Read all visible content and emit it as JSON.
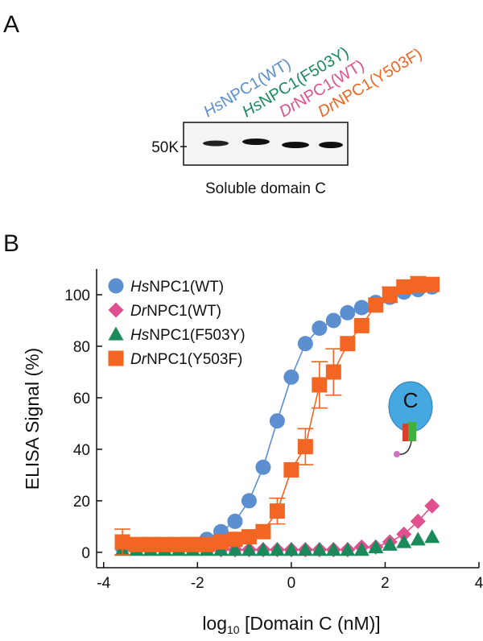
{
  "panel_labels": [
    "A",
    "B"
  ],
  "blot": {
    "lanes": [
      {
        "text": "HsNPC1(WT)",
        "color": "#5b8fd0"
      },
      {
        "text": "HsNPC1(F503Y)",
        "color": "#1a8a5a"
      },
      {
        "text": "DrNPC1(WT)",
        "color": "#e0508f"
      },
      {
        "text": "DrNPC1(Y503F)",
        "color": "#f26522"
      }
    ],
    "marker": "50K",
    "caption": "Soluble domain C"
  },
  "chart_data": {
    "type": "scatter",
    "y_label": "ELISA Signal (%)",
    "x_label": {
      "main": "log",
      "sub": "10",
      "rest": " [Domain C (nM)]"
    },
    "xlim": [
      -4.15,
      4
    ],
    "xticks": [
      -4,
      -2,
      0,
      2,
      4
    ],
    "ylim": [
      -6,
      110
    ],
    "yticks": [
      0,
      20,
      40,
      60,
      80,
      100
    ],
    "legend": "upper left",
    "icon_label": "C",
    "series": [
      {
        "name": "HsNPC1(WT)",
        "color": "#5b8fd0",
        "marker": "circle",
        "line": true,
        "x": [
          -3.6,
          -3.3,
          -3.0,
          -2.7,
          -2.4,
          -2.1,
          -1.8,
          -1.5,
          -1.2,
          -0.9,
          -0.6,
          -0.3,
          0.0,
          0.3,
          0.6,
          0.9,
          1.2,
          1.5,
          1.8,
          2.1,
          2.4,
          2.7,
          3.0
        ],
        "values": [
          2,
          2,
          2,
          2,
          2,
          3,
          5,
          8,
          12,
          20,
          33,
          51,
          68,
          81,
          87,
          90,
          93,
          95,
          97,
          99,
          101,
          102,
          103
        ]
      },
      {
        "name": "DrNPC1(WT)",
        "color": "#e0508f",
        "marker": "diamond",
        "line": true,
        "x": [
          -3.6,
          -3.3,
          -3.0,
          -2.7,
          -2.4,
          -2.1,
          -1.8,
          -1.5,
          -1.2,
          -0.9,
          -0.6,
          -0.3,
          0.0,
          0.3,
          0.6,
          0.9,
          1.2,
          1.5,
          1.8,
          2.1,
          2.4,
          2.7,
          3.0
        ],
        "values": [
          2,
          2,
          2,
          2,
          2,
          2,
          2,
          1,
          1,
          1,
          1,
          1,
          1,
          1,
          1,
          1,
          1,
          2,
          2,
          4,
          7,
          12,
          18
        ]
      },
      {
        "name": "HsNPC1(F503Y)",
        "color": "#1a8a5a",
        "marker": "triangle",
        "line": false,
        "x": [
          -3.6,
          -3.3,
          -3.0,
          -2.7,
          -2.4,
          -2.1,
          -1.8,
          -1.5,
          -1.2,
          -0.9,
          -0.6,
          -0.3,
          0.0,
          0.3,
          0.6,
          0.9,
          1.2,
          1.5,
          1.8,
          2.1,
          2.4,
          2.7,
          3.0
        ],
        "values": [
          1,
          1,
          1,
          1,
          1,
          1,
          1,
          1,
          1,
          1,
          1,
          1,
          1,
          1,
          1,
          1,
          1,
          1,
          2,
          3,
          4,
          5,
          6
        ]
      },
      {
        "name": "DrNPC1(Y503F)",
        "color": "#f26522",
        "marker": "square",
        "line": true,
        "x": [
          -3.6,
          -3.3,
          -3.0,
          -2.7,
          -2.4,
          -2.1,
          -1.8,
          -1.5,
          -1.2,
          -0.9,
          -0.6,
          -0.3,
          0.0,
          0.3,
          0.6,
          0.9,
          1.2,
          1.5,
          1.8,
          2.1,
          2.4,
          2.7,
          3.0
        ],
        "values": [
          4,
          3,
          3,
          3,
          3,
          3,
          3,
          4,
          5,
          6,
          8,
          16,
          32,
          41,
          65,
          70,
          81,
          88,
          96,
          100,
          103,
          104,
          104
        ],
        "errors": [
          5,
          null,
          null,
          null,
          null,
          null,
          null,
          null,
          null,
          null,
          null,
          5,
          null,
          7,
          9,
          9,
          null,
          null,
          null,
          3,
          null,
          3,
          null
        ]
      }
    ]
  }
}
